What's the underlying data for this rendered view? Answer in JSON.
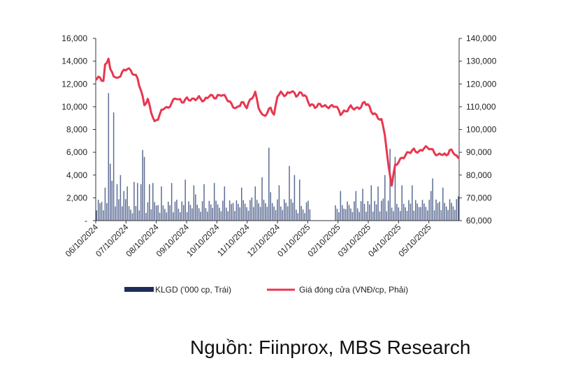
{
  "source_note": "Nguồn: Fiinprox, MBS Research",
  "chart_data": {
    "type": "bar+line",
    "title": "",
    "left_axis": {
      "min": 0,
      "max": 16000,
      "ticks": [
        "-",
        "2,000",
        "4,000",
        "6,000",
        "8,000",
        "10,000",
        "12,000",
        "14,000",
        "16,000"
      ]
    },
    "right_axis": {
      "min": 60000,
      "max": 140000,
      "ticks": [
        "60,000",
        "70,000",
        "80,000",
        "90,000",
        "100,000",
        "110,000",
        "120,000",
        "130,000",
        "140,000"
      ]
    },
    "x_tick_labels": [
      "06/10/2024",
      "07/10/2024",
      "08/10/2024",
      "09/10/2024",
      "10/10/2024",
      "11/10/2024",
      "12/10/2024",
      "01/10/2025",
      "02/10/2025",
      "03/10/2025",
      "04/10/2025",
      "05/10/2025"
    ],
    "legend": [
      {
        "name": "KLGD ('000 cp, Trái)",
        "color": "#1f2d5a",
        "kind": "bar"
      },
      {
        "name": "Giá đóng cửa (VNĐ/cp, Phải)",
        "color": "#e8364f",
        "kind": "line"
      }
    ],
    "series_colors": {
      "volume_bar": "#5d6d94",
      "price_line": "#e8364f",
      "axis": "#333333"
    },
    "price_anchor_points": [
      [
        0,
        122000
      ],
      [
        2,
        123000
      ],
      [
        4,
        121000
      ],
      [
        5,
        128000
      ],
      [
        7,
        131500
      ],
      [
        8,
        126000
      ],
      [
        10,
        124000
      ],
      [
        12,
        122000
      ],
      [
        15,
        125000
      ],
      [
        18,
        127000
      ],
      [
        21,
        125000
      ],
      [
        24,
        122500
      ],
      [
        26,
        117000
      ],
      [
        28,
        111000
      ],
      [
        30,
        113000
      ],
      [
        32,
        108000
      ],
      [
        34,
        103000
      ],
      [
        36,
        105000
      ],
      [
        38,
        108000
      ],
      [
        40,
        110000
      ],
      [
        42,
        109000
      ],
      [
        44,
        112000
      ],
      [
        47,
        114000
      ],
      [
        50,
        112000
      ],
      [
        53,
        113500
      ],
      [
        56,
        113000
      ],
      [
        60,
        114000
      ],
      [
        63,
        112500
      ],
      [
        66,
        115000
      ],
      [
        70,
        114000
      ],
      [
        73,
        115500
      ],
      [
        76,
        114000
      ],
      [
        79,
        111000
      ],
      [
        82,
        109000
      ],
      [
        85,
        112000
      ],
      [
        88,
        110000
      ],
      [
        91,
        114000
      ],
      [
        93,
        116000
      ],
      [
        95,
        110000
      ],
      [
        97,
        106000
      ],
      [
        100,
        107000
      ],
      [
        102,
        110000
      ],
      [
        104,
        106000
      ],
      [
        106,
        115000
      ],
      [
        108,
        116000
      ],
      [
        111,
        115000
      ],
      [
        114,
        117000
      ],
      [
        117,
        115000
      ],
      [
        120,
        116000
      ],
      [
        122,
        115000
      ],
      [
        125,
        111000
      ],
      [
        128,
        110000
      ],
      [
        131,
        111000
      ],
      [
        134,
        110000
      ],
      [
        137,
        110000
      ],
      [
        140,
        110500
      ],
      [
        143,
        107000
      ],
      [
        146,
        108000
      ],
      [
        149,
        110000
      ],
      [
        152,
        109000
      ],
      [
        155,
        110000
      ],
      [
        157,
        112000
      ],
      [
        159,
        111000
      ],
      [
        161,
        108000
      ],
      [
        164,
        106000
      ],
      [
        167,
        104000
      ],
      [
        169,
        98000
      ],
      [
        171,
        84000
      ],
      [
        173,
        76000
      ],
      [
        175,
        84000
      ],
      [
        177,
        86000
      ],
      [
        180,
        88000
      ],
      [
        183,
        90000
      ],
      [
        186,
        91000
      ],
      [
        189,
        90000
      ],
      [
        192,
        92000
      ],
      [
        195,
        92000
      ],
      [
        198,
        90000
      ],
      [
        200,
        88500
      ],
      [
        202,
        89500
      ],
      [
        205,
        88500
      ],
      [
        207,
        91000
      ],
      [
        210,
        89500
      ],
      [
        212,
        87000
      ]
    ],
    "volume_spikes": [
      [
        5,
        2900
      ],
      [
        7,
        11200
      ],
      [
        8,
        5000
      ],
      [
        9,
        3500
      ],
      [
        10,
        9500
      ],
      [
        12,
        3200
      ],
      [
        14,
        4000
      ],
      [
        16,
        2600
      ],
      [
        18,
        3000
      ],
      [
        22,
        3400
      ],
      [
        24,
        3300
      ],
      [
        26,
        3200
      ],
      [
        27,
        6200
      ],
      [
        28,
        5600
      ],
      [
        31,
        3200
      ],
      [
        33,
        3300
      ],
      [
        38,
        3000
      ],
      [
        44,
        3300
      ],
      [
        52,
        3600
      ],
      [
        57,
        3100
      ],
      [
        63,
        3200
      ],
      [
        69,
        3300
      ],
      [
        75,
        3000
      ],
      [
        85,
        2900
      ],
      [
        93,
        3000
      ],
      [
        97,
        3800
      ],
      [
        101,
        6400
      ],
      [
        107,
        3100
      ],
      [
        113,
        4800
      ],
      [
        116,
        4000
      ],
      [
        119,
        3600
      ],
      [
        143,
        2600
      ],
      [
        152,
        2600
      ],
      [
        156,
        2800
      ],
      [
        161,
        3100
      ],
      [
        165,
        3000
      ],
      [
        169,
        4000
      ],
      [
        172,
        6300
      ],
      [
        175,
        5600
      ],
      [
        179,
        3100
      ],
      [
        185,
        3100
      ],
      [
        196,
        2600
      ],
      [
        197,
        3700
      ],
      [
        203,
        2900
      ]
    ],
    "volume_gap_days": [
      126,
      127,
      128,
      129,
      130,
      131,
      132,
      133,
      134,
      135,
      136,
      137,
      138,
      139
    ]
  }
}
